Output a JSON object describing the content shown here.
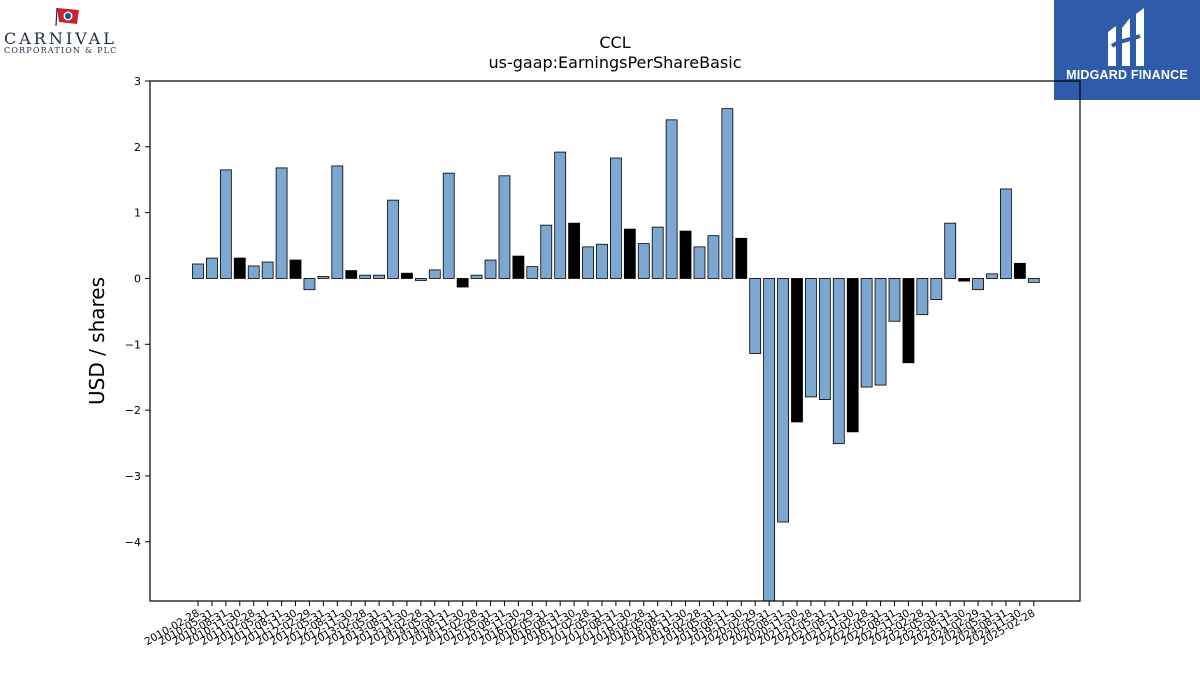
{
  "logos": {
    "left": {
      "brand": "CARNIVAL",
      "subtitle": "CORPORATION & PLC"
    },
    "right": {
      "name": "MIDGARD FINANCE",
      "bg_color": "#2e5caa"
    }
  },
  "chart_data": {
    "type": "bar",
    "title": "CCL",
    "subtitle": "us-gaap:EarningsPerShareBasic",
    "xlabel": "",
    "ylabel": "USD / shares",
    "ylim": [
      -4.9,
      3.0
    ],
    "yticks": [
      3,
      2,
      1,
      0,
      -1,
      -2,
      -3,
      -4
    ],
    "ytick_labels": [
      "3",
      "2",
      "1",
      "0",
      "−1",
      "−2",
      "−3",
      "−4"
    ],
    "grid": false,
    "colors": {
      "quarter": "#7ba7d0",
      "annual": "#000000",
      "edge": "#000000"
    },
    "categories": [
      "2010-02-28",
      "2010-05-31",
      "2010-08-31",
      "2010-11-30",
      "2011-02-28",
      "2011-05-31",
      "2011-08-31",
      "2011-11-30",
      "2012-02-29",
      "2012-05-31",
      "2012-08-31",
      "2012-11-30",
      "2013-02-28",
      "2013-05-31",
      "2013-08-31",
      "2013-11-30",
      "2014-02-28",
      "2014-05-31",
      "2014-08-31",
      "2014-11-30",
      "2015-02-28",
      "2015-05-31",
      "2015-08-31",
      "2015-11-30",
      "2016-02-29",
      "2016-05-31",
      "2016-08-31",
      "2016-11-30",
      "2017-02-28",
      "2017-05-31",
      "2017-08-31",
      "2017-11-30",
      "2018-02-28",
      "2018-05-31",
      "2018-08-31",
      "2018-11-30",
      "2019-02-28",
      "2019-05-31",
      "2019-08-31",
      "2019-11-30",
      "2020-02-29",
      "2020-05-31",
      "2020-08-31",
      "2020-11-30",
      "2021-02-28",
      "2021-05-31",
      "2021-08-31",
      "2021-11-30",
      "2022-02-28",
      "2022-05-31",
      "2022-08-31",
      "2022-11-30",
      "2023-02-28",
      "2023-05-31",
      "2023-08-31",
      "2023-11-30",
      "2024-02-29",
      "2024-05-31",
      "2024-08-31",
      "2024-11-30",
      "2025-02-28"
    ],
    "values": [
      0.22,
      0.31,
      1.65,
      0.31,
      0.19,
      0.25,
      1.68,
      0.28,
      -0.17,
      0.03,
      1.71,
      0.12,
      0.05,
      0.05,
      1.19,
      0.08,
      -0.03,
      0.13,
      1.6,
      -0.13,
      0.05,
      0.28,
      1.56,
      0.34,
      0.18,
      0.81,
      1.92,
      0.84,
      0.48,
      0.52,
      1.83,
      0.75,
      0.53,
      0.78,
      2.41,
      0.72,
      0.48,
      0.65,
      2.58,
      0.61,
      -1.14,
      -4.9,
      -3.7,
      -2.18,
      -1.8,
      -1.84,
      -2.51,
      -2.33,
      -1.65,
      -1.62,
      -0.65,
      -1.28,
      -0.55,
      -0.32,
      0.84,
      -0.04,
      -0.17,
      0.07,
      1.36,
      0.23,
      -0.06
    ],
    "annual_flags": [
      false,
      false,
      false,
      true,
      false,
      false,
      false,
      true,
      false,
      false,
      false,
      true,
      false,
      false,
      false,
      true,
      false,
      false,
      false,
      true,
      false,
      false,
      false,
      true,
      false,
      false,
      false,
      true,
      false,
      false,
      false,
      true,
      false,
      false,
      false,
      true,
      false,
      false,
      false,
      true,
      false,
      false,
      false,
      true,
      false,
      false,
      false,
      true,
      false,
      false,
      false,
      true,
      false,
      false,
      false,
      true,
      false,
      false,
      false,
      true,
      false
    ]
  }
}
